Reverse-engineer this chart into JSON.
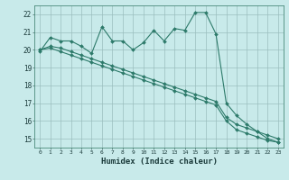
{
  "xlabel": "Humidex (Indice chaleur)",
  "bg_color": "#c8eaea",
  "grid_color": "#9bbebe",
  "line_color": "#2d7a6a",
  "x_values": [
    0,
    1,
    2,
    3,
    4,
    5,
    6,
    7,
    8,
    9,
    10,
    11,
    12,
    13,
    14,
    15,
    16,
    17,
    18,
    19,
    20,
    21,
    22,
    23
  ],
  "series1": [
    19.9,
    20.7,
    20.5,
    20.5,
    20.2,
    19.8,
    21.3,
    20.5,
    20.5,
    20.0,
    20.4,
    21.1,
    20.5,
    21.2,
    21.1,
    22.1,
    22.1,
    20.9,
    17.0,
    16.3,
    15.8,
    15.4,
    15.0,
    14.8
  ],
  "series2": [
    20.0,
    20.1,
    19.9,
    19.7,
    19.5,
    19.3,
    19.1,
    18.9,
    18.7,
    18.5,
    18.3,
    18.1,
    17.9,
    17.7,
    17.5,
    17.3,
    17.1,
    16.9,
    16.0,
    15.5,
    15.3,
    15.1,
    14.9,
    14.8
  ],
  "series3": [
    20.0,
    20.2,
    20.1,
    19.9,
    19.7,
    19.5,
    19.3,
    19.1,
    18.9,
    18.7,
    18.5,
    18.3,
    18.1,
    17.9,
    17.7,
    17.5,
    17.3,
    17.1,
    16.2,
    15.8,
    15.6,
    15.4,
    15.2,
    15.0
  ],
  "ylim": [
    14.5,
    22.5
  ],
  "yticks": [
    15,
    16,
    17,
    18,
    19,
    20,
    21,
    22
  ],
  "xlim": [
    -0.5,
    23.5
  ],
  "xticks": [
    0,
    1,
    2,
    3,
    4,
    5,
    6,
    7,
    8,
    9,
    10,
    11,
    12,
    13,
    14,
    15,
    16,
    17,
    18,
    19,
    20,
    21,
    22,
    23
  ]
}
